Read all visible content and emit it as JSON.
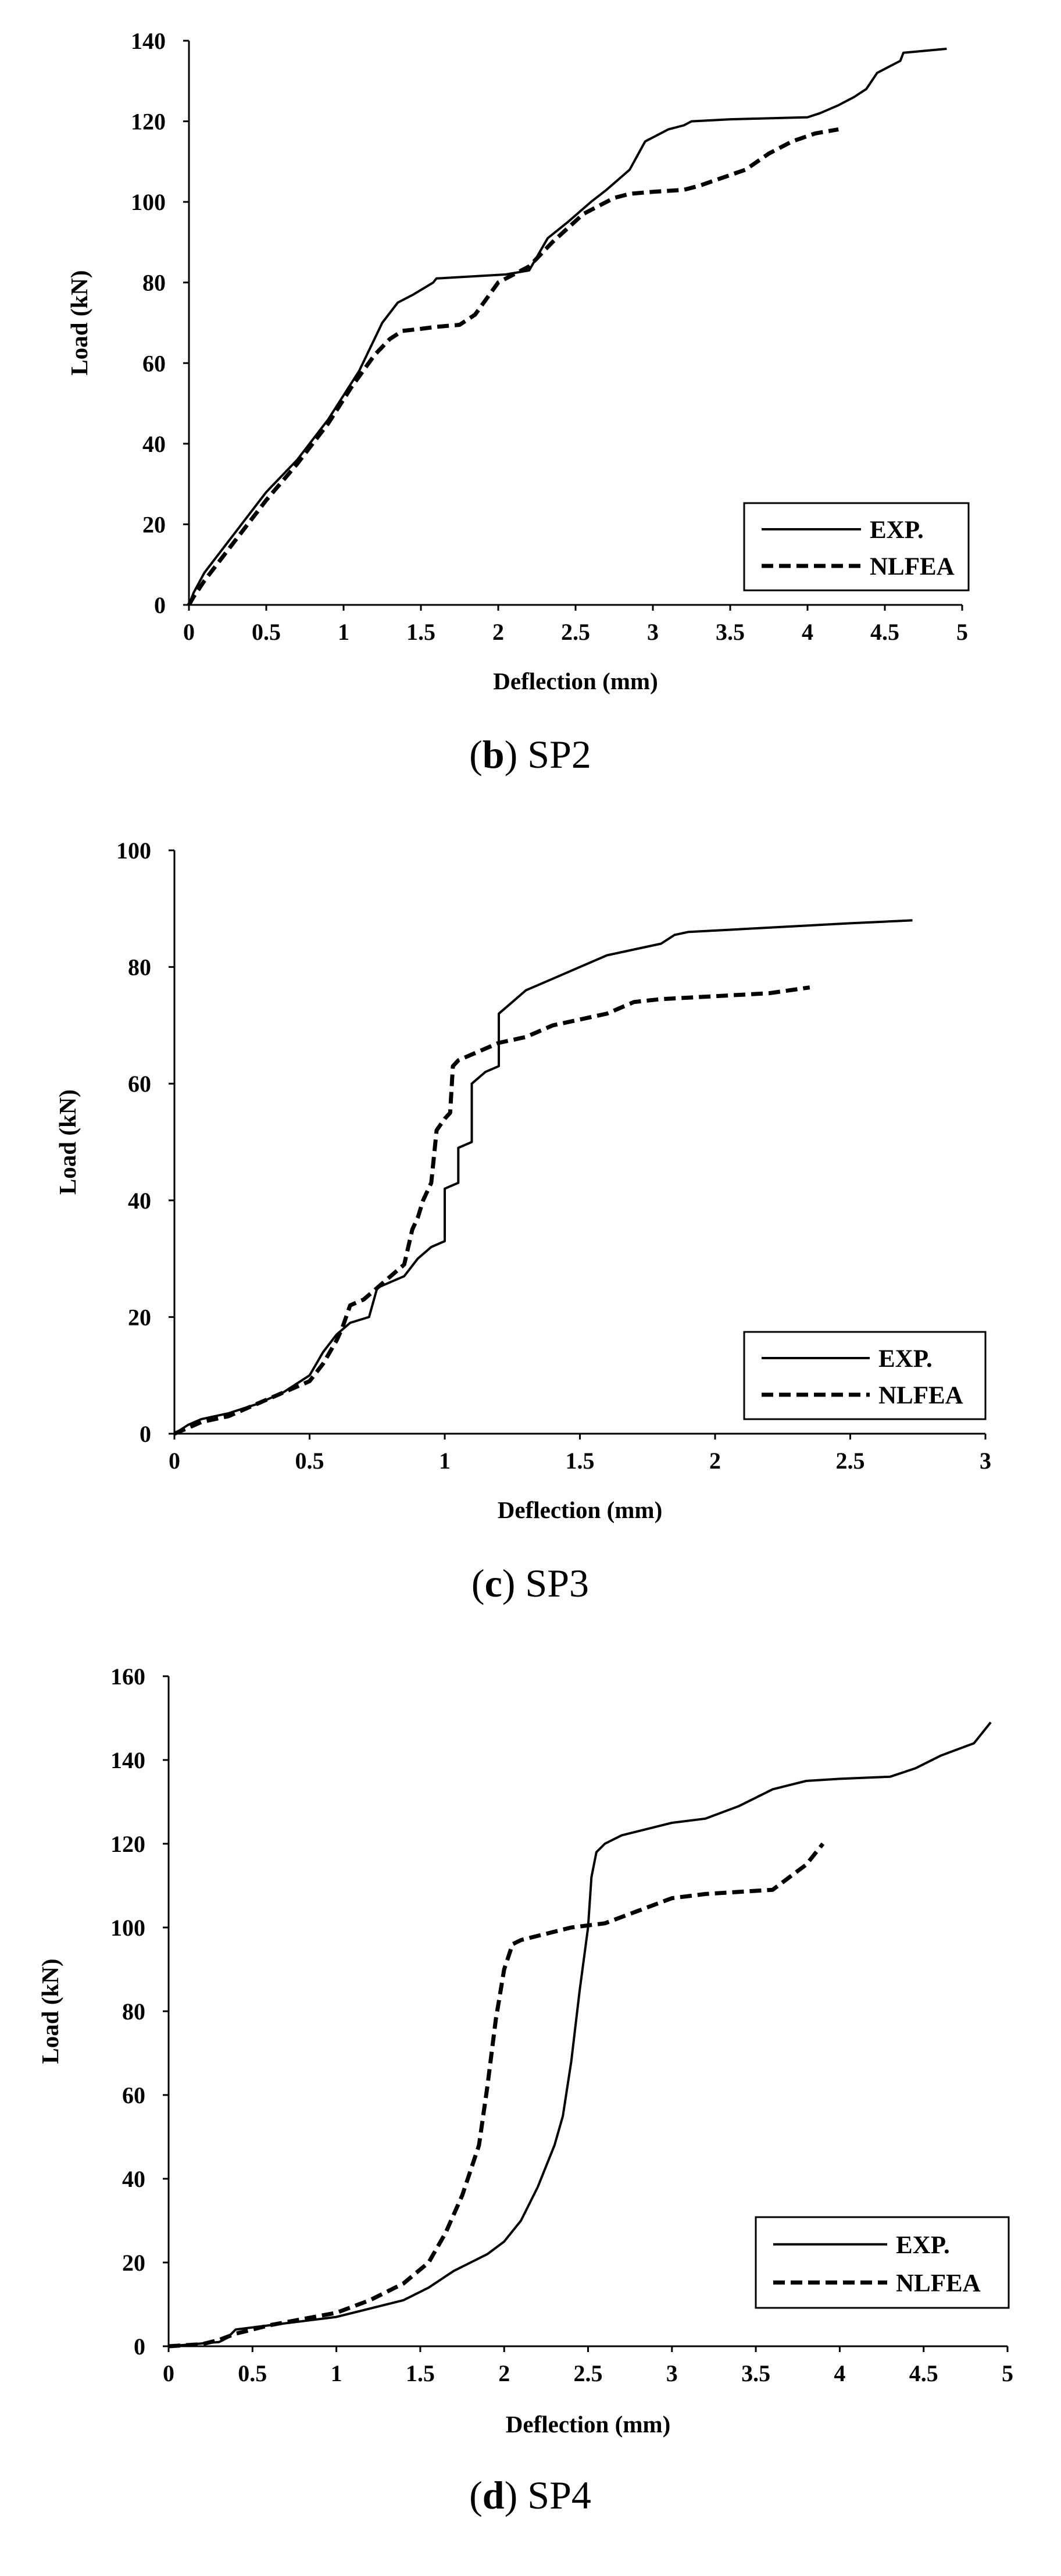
{
  "chart_data": [
    {
      "type": "line",
      "caption": {
        "open": "(",
        "letter": "b",
        "close": ")",
        "name": "SP2"
      },
      "xlabel": "Deflection (mm)",
      "ylabel": "Load (kN)",
      "xlim": [
        0,
        5
      ],
      "ylim": [
        0,
        140
      ],
      "xticks": [
        0,
        0.5,
        1,
        1.5,
        2,
        2.5,
        3,
        3.5,
        4,
        4.5,
        5
      ],
      "xtick_labels": [
        "0",
        "0.5",
        "1",
        "1.5",
        "2",
        "2.5",
        "3",
        "3.5",
        "4",
        "4.5",
        "5"
      ],
      "yticks": [
        0,
        20,
        40,
        60,
        80,
        100,
        120,
        140
      ],
      "ytick_labels": [
        "0",
        "20",
        "40",
        "60",
        "80",
        "100",
        "120",
        "140"
      ],
      "legend": {
        "position": "bottom-right",
        "entries": [
          "EXP.",
          "NLFEA"
        ]
      },
      "series": [
        {
          "name": "EXP.",
          "style": "solid",
          "x": [
            0,
            0.03,
            0.1,
            0.3,
            0.5,
            0.7,
            0.9,
            1.1,
            1.25,
            1.35,
            1.45,
            1.58,
            1.6,
            2.05,
            2.2,
            2.32,
            2.45,
            2.6,
            2.7,
            2.85,
            2.95,
            3.1,
            3.2,
            3.25,
            3.5,
            4.0,
            4.08,
            4.2,
            4.3,
            4.38,
            4.45,
            4.6,
            4.62,
            4.9
          ],
          "y": [
            0,
            3,
            8,
            18,
            28,
            36,
            46,
            58,
            70,
            75,
            77,
            80,
            81,
            82,
            83,
            91,
            95,
            100,
            103,
            108,
            115,
            118,
            119,
            120,
            120.5,
            121,
            122,
            124,
            126,
            128,
            132,
            135,
            137,
            138
          ]
        },
        {
          "name": "NLFEA",
          "style": "dashed",
          "x": [
            0,
            0.03,
            0.1,
            0.3,
            0.5,
            0.7,
            0.9,
            1.05,
            1.2,
            1.3,
            1.38,
            1.5,
            1.6,
            1.75,
            1.85,
            2.0,
            2.2,
            2.35,
            2.55,
            2.75,
            2.85,
            3.0,
            3.2,
            3.3,
            3.45,
            3.6,
            3.75,
            3.9,
            4.05,
            4.2
          ],
          "y": [
            0,
            2,
            6,
            16,
            26,
            35,
            45,
            54,
            62,
            66,
            68,
            68.5,
            69,
            69.5,
            72,
            80,
            84,
            90,
            97,
            101,
            102,
            102.5,
            103,
            104,
            106,
            108,
            112,
            115,
            117,
            118
          ]
        }
      ]
    },
    {
      "type": "line",
      "caption": {
        "open": "(",
        "letter": "c",
        "close": ")",
        "name": "SP3"
      },
      "xlabel": "Deflection (mm)",
      "ylabel": "Load (kN)",
      "xlim": [
        0,
        3
      ],
      "ylim": [
        0,
        100
      ],
      "xticks": [
        0,
        0.5,
        1,
        1.5,
        2,
        2.5,
        3
      ],
      "xtick_labels": [
        "0",
        "0.5",
        "1",
        "1.5",
        "2",
        "2.5",
        "3"
      ],
      "yticks": [
        0,
        20,
        40,
        60,
        80,
        100
      ],
      "ytick_labels": [
        "0",
        "20",
        "40",
        "60",
        "80",
        "100"
      ],
      "legend": {
        "position": "bottom-right",
        "entries": [
          "EXP.",
          "NLFEA"
        ]
      },
      "series": [
        {
          "name": "EXP.",
          "style": "solid",
          "x": [
            0,
            0.05,
            0.1,
            0.2,
            0.3,
            0.4,
            0.5,
            0.55,
            0.6,
            0.65,
            0.72,
            0.75,
            0.8,
            0.85,
            0.9,
            0.95,
            1.0,
            1.0,
            1.05,
            1.05,
            1.1,
            1.1,
            1.15,
            1.2,
            1.2,
            1.25,
            1.3,
            1.35,
            1.4,
            1.5,
            1.6,
            1.7,
            1.8,
            1.85,
            1.9,
            2.1,
            2.3,
            2.5,
            2.73
          ],
          "y": [
            0,
            1.5,
            2.5,
            3.5,
            5,
            7,
            10,
            14,
            17,
            19,
            20,
            25,
            26,
            27,
            30,
            32,
            33,
            42,
            43,
            49,
            50,
            60,
            62,
            63,
            72,
            74,
            76,
            77,
            78,
            80,
            82,
            83,
            84,
            85.5,
            86,
            86.5,
            87,
            87.5,
            88
          ]
        },
        {
          "name": "NLFEA",
          "style": "dashed",
          "x": [
            0,
            0.05,
            0.1,
            0.2,
            0.3,
            0.4,
            0.5,
            0.55,
            0.6,
            0.62,
            0.65,
            0.7,
            0.75,
            0.8,
            0.85,
            0.88,
            0.9,
            0.92,
            0.95,
            0.97,
            1.0,
            1.02,
            1.03,
            1.05,
            1.1,
            1.2,
            1.3,
            1.4,
            1.5,
            1.6,
            1.7,
            1.8,
            2.0,
            2.2,
            2.35
          ],
          "y": [
            0,
            1,
            2,
            3,
            5,
            7,
            9,
            12,
            16,
            18,
            22,
            23,
            25,
            27,
            29,
            35,
            37,
            40,
            43,
            52,
            54,
            55,
            63,
            64,
            65,
            67,
            68,
            70,
            71,
            72,
            74,
            74.5,
            75,
            75.5,
            76.5
          ]
        }
      ]
    },
    {
      "type": "line",
      "caption": {
        "open": "(",
        "letter": "d",
        "close": ")",
        "name": "SP4"
      },
      "xlabel": "Deflection (mm)",
      "ylabel": "Load (kN)",
      "xlim": [
        0,
        5
      ],
      "ylim": [
        0,
        160
      ],
      "xticks": [
        0,
        0.5,
        1,
        1.5,
        2,
        2.5,
        3,
        3.5,
        4,
        4.5,
        5
      ],
      "xtick_labels": [
        "0",
        "0.5",
        "1",
        "1.5",
        "2",
        "2.5",
        "3",
        "3.5",
        "4",
        "4.5",
        "5"
      ],
      "yticks": [
        0,
        20,
        40,
        60,
        80,
        100,
        120,
        140,
        160
      ],
      "ytick_labels": [
        "0",
        "20",
        "40",
        "60",
        "80",
        "100",
        "120",
        "140",
        "160"
      ],
      "legend": {
        "position": "bottom-right",
        "entries": [
          "EXP.",
          "NLFEA"
        ]
      },
      "series": [
        {
          "name": "EXP.",
          "style": "solid",
          "x": [
            0,
            0.3,
            0.35,
            0.4,
            0.6,
            0.8,
            1.0,
            1.2,
            1.4,
            1.55,
            1.7,
            1.8,
            1.9,
            2.0,
            2.1,
            2.2,
            2.3,
            2.35,
            2.4,
            2.45,
            2.5,
            2.52,
            2.55,
            2.6,
            2.7,
            2.9,
            3.0,
            3.2,
            3.4,
            3.6,
            3.7,
            3.8,
            4.0,
            4.3,
            4.45,
            4.6,
            4.8,
            4.9
          ],
          "y": [
            0,
            1,
            2,
            4,
            5,
            6,
            7,
            9,
            11,
            14,
            18,
            20,
            22,
            25,
            30,
            38,
            48,
            55,
            68,
            85,
            100,
            112,
            118,
            120,
            122,
            124,
            125,
            126,
            129,
            133,
            134,
            135,
            135.5,
            136,
            138,
            141,
            144,
            149
          ]
        },
        {
          "name": "NLFEA",
          "style": "dashed",
          "x": [
            0,
            0.2,
            0.3,
            0.4,
            0.6,
            0.8,
            1.0,
            1.2,
            1.4,
            1.55,
            1.65,
            1.75,
            1.85,
            1.9,
            1.95,
            2.0,
            2.05,
            2.1,
            2.2,
            2.4,
            2.6,
            2.8,
            3.0,
            3.2,
            3.4,
            3.6,
            3.7,
            3.8,
            3.9
          ],
          "y": [
            0,
            0.5,
            1.5,
            3,
            5,
            6.5,
            8,
            11,
            15,
            20,
            27,
            36,
            48,
            62,
            78,
            90,
            96,
            97,
            98,
            100,
            101,
            104,
            107,
            108,
            108.5,
            109,
            112,
            115,
            120
          ]
        }
      ]
    }
  ]
}
